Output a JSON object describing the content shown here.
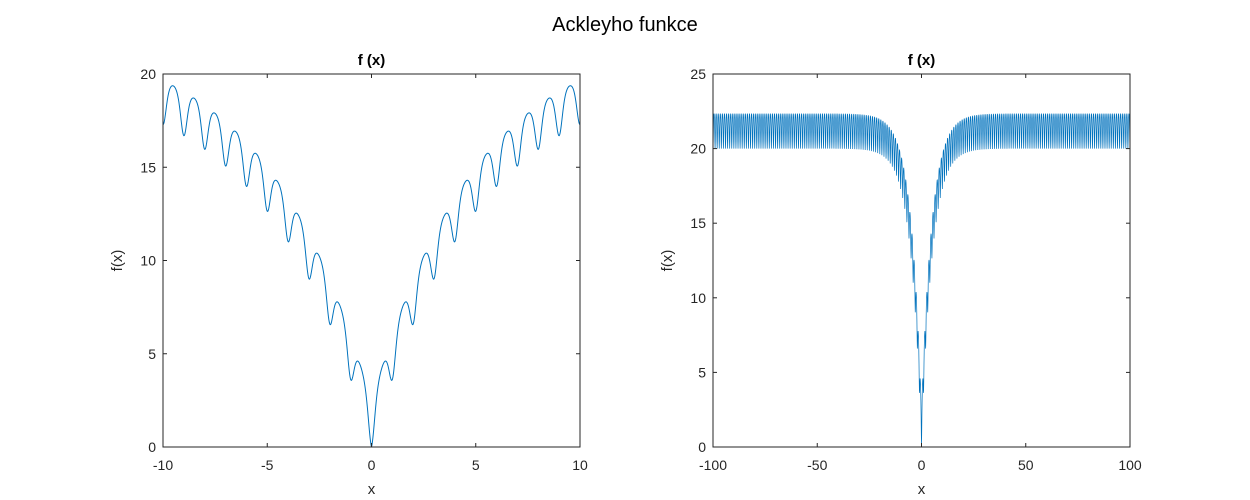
{
  "figure": {
    "title": "Ackleyho funkce"
  },
  "chart_data": [
    {
      "type": "line",
      "function": "ackley",
      "title": "f (x)",
      "xlabel": "x",
      "ylabel": "f(x)",
      "xlim": [
        -10,
        10
      ],
      "ylim": [
        0,
        20
      ],
      "xticks": [
        -10,
        -5,
        0,
        5,
        10
      ],
      "yticks": [
        0,
        5,
        10,
        15,
        20
      ],
      "x_range": [
        -10,
        10
      ],
      "samples": 1200,
      "grid": false,
      "color": "#0072BD"
    },
    {
      "type": "line",
      "function": "ackley",
      "title": "f (x)",
      "xlabel": "x",
      "ylabel": "f(x)",
      "xlim": [
        -100,
        100
      ],
      "ylim": [
        0,
        25
      ],
      "xticks": [
        -100,
        -50,
        0,
        50,
        100
      ],
      "yticks": [
        0,
        5,
        10,
        15,
        20,
        25
      ],
      "x_range": [
        -100,
        100
      ],
      "samples": 2000,
      "grid": false,
      "color": "#0072BD"
    }
  ]
}
